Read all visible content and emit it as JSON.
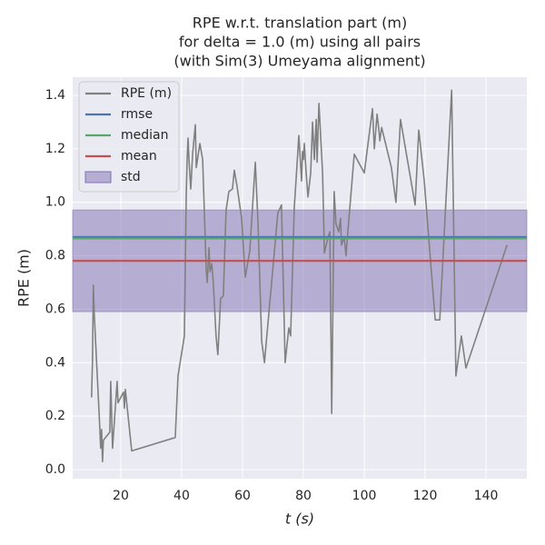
{
  "chart_data": {
    "type": "line",
    "title": [
      "RPE w.r.t. translation part (m)",
      "for delta = 1.0 (m) using all pairs",
      "(with Sim(3) Umeyama alignment)"
    ],
    "xlabel": "t (s)",
    "ylabel": "RPE (m)",
    "xlim": [
      4.2,
      153.4
    ],
    "ylim": [
      -0.034,
      1.468
    ],
    "xticks": [
      20,
      40,
      60,
      80,
      100,
      120,
      140
    ],
    "yticks": [
      {
        "value": 0,
        "label": "0.0"
      },
      0.2,
      0.4,
      0.6,
      0.8,
      {
        "value": 1,
        "label": "1.0"
      },
      1.2,
      1.4
    ],
    "grid": true,
    "legend": "upper left",
    "series": [
      {
        "name": "RPE (m)",
        "color": "#808080",
        "x": [
          10.4,
          10.7,
          11.0,
          11.3,
          13.1,
          13.4,
          13.7,
          14.0,
          14.3,
          16.4,
          16.7,
          17.3,
          18.8,
          19.1,
          20.9,
          21.2,
          21.5,
          23.6,
          37.9,
          38.8,
          40.9,
          41.5,
          41.8,
          42.1,
          42.4,
          43.0,
          43.6,
          44.5,
          44.8,
          46.0,
          46.9,
          48.1,
          48.4,
          49.0,
          49.3,
          49.9,
          50.4,
          51.3,
          51.9,
          52.8,
          53.7,
          54.6,
          55.5,
          56.7,
          57.3,
          58.2,
          59.7,
          60.9,
          62.4,
          64.2,
          65.1,
          66.3,
          67.2,
          71.6,
          72.8,
          74.0,
          75.2,
          75.8,
          77.0,
          77.9,
          78.5,
          79.4,
          79.7,
          80.0,
          80.3,
          80.9,
          81.5,
          82.4,
          83.0,
          83.6,
          84.2,
          84.5,
          85.1,
          86.3,
          86.9,
          88.1,
          88.7,
          89.3,
          90.1,
          90.7,
          91.6,
          92.2,
          92.5,
          93.4,
          94.0,
          94.6,
          96.7,
          100.0,
          102.7,
          103.3,
          104.2,
          104.8,
          105.1,
          105.7,
          108.9,
          110.4,
          111.9,
          116.7,
          117.9,
          119.7,
          123.3,
          124.8,
          128.7,
          130.1,
          131.9,
          133.4,
          146.9
        ],
        "values": [
          0.27,
          0.4,
          0.69,
          0.58,
          0.16,
          0.08,
          0.15,
          0.03,
          0.11,
          0.14,
          0.33,
          0.08,
          0.33,
          0.25,
          0.29,
          0.23,
          0.3,
          0.07,
          0.12,
          0.35,
          0.5,
          1.02,
          1.16,
          1.24,
          1.16,
          1.05,
          1.18,
          1.29,
          1.13,
          1.22,
          1.16,
          0.74,
          0.7,
          0.83,
          0.74,
          0.77,
          0.7,
          0.5,
          0.43,
          0.64,
          0.65,
          0.97,
          1.04,
          1.05,
          1.12,
          1.06,
          0.94,
          0.72,
          0.82,
          1.15,
          0.92,
          0.48,
          0.4,
          0.96,
          0.99,
          0.4,
          0.53,
          0.5,
          0.98,
          1.14,
          1.25,
          1.08,
          1.19,
          1.16,
          1.22,
          1.11,
          1.02,
          1.11,
          1.3,
          1.16,
          1.31,
          1.15,
          1.37,
          1.11,
          0.81,
          0.87,
          0.89,
          0.21,
          1.04,
          0.92,
          0.89,
          0.94,
          0.84,
          0.87,
          0.8,
          0.89,
          1.18,
          1.11,
          1.35,
          1.2,
          1.33,
          1.27,
          1.23,
          1.28,
          1.13,
          1.0,
          1.31,
          0.99,
          1.27,
          1.08,
          0.56,
          0.56,
          1.42,
          0.35,
          0.5,
          0.38,
          0.84
        ]
      }
    ],
    "reference_lines": [
      {
        "name": "rmse",
        "color": "#4c72b0",
        "value": 0.87
      },
      {
        "name": "median",
        "color": "#55a868",
        "value": 0.865
      },
      {
        "name": "mean",
        "color": "#c44e52",
        "value": 0.781
      }
    ],
    "std_band": {
      "name": "std",
      "color": "#8172b2",
      "value": 0.19
    }
  }
}
